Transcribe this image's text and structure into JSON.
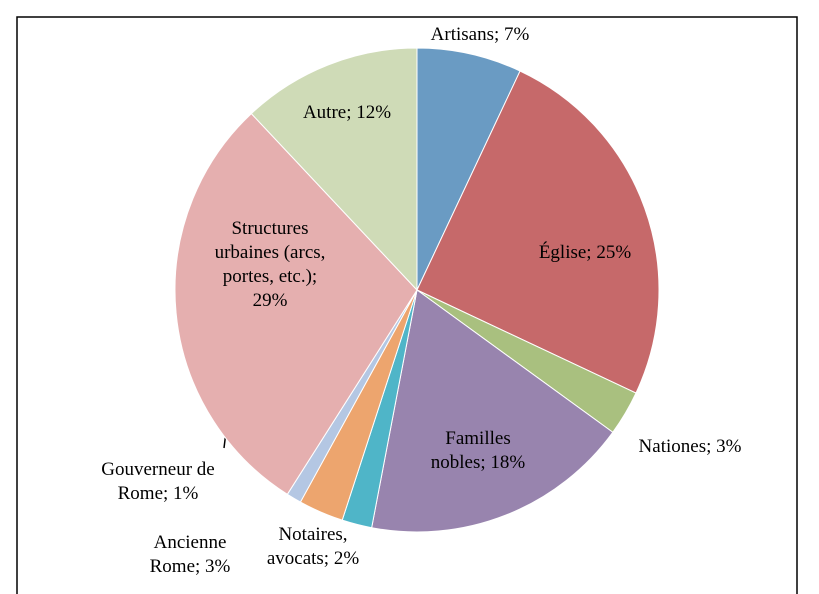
{
  "chart_data": {
    "type": "pie",
    "value_labels": [
      "Artisans; 7%",
      "Église; 25%",
      "Nationes; 3%",
      "Familles\nnobles; 18%",
      "Notaires,\navocats; 2%",
      "Ancienne\nRome; 3%",
      "Gouverneur de\nRome; 1%",
      "Structures\nurbaines (arcs,\nportes, etc.);\n29%",
      "Autre; 12%"
    ],
    "values": [
      7,
      25,
      3,
      18,
      2,
      3,
      1,
      29,
      12
    ],
    "colors": [
      "#6a9bc3",
      "#c6696a",
      "#a9c07f",
      "#9884ae",
      "#4fb5c8",
      "#eda56e",
      "#b4c7e3",
      "#e5afaf",
      "#cfdbb7"
    ]
  }
}
